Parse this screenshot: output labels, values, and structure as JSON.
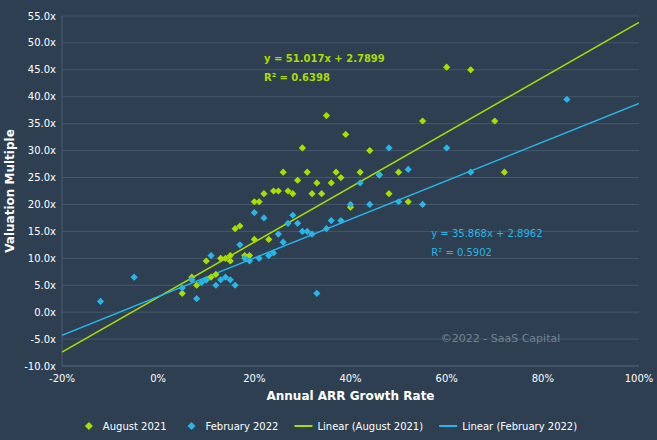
{
  "chart_data": {
    "type": "scatter",
    "background_color": "#2d3f50",
    "text_color": "#ffffff",
    "grid_color": "#4a5f72",
    "xlabel": "Annual ARR Growth Rate",
    "ylabel": "Valuation Multiple",
    "xlim": [
      -0.2,
      1.0
    ],
    "ylim": [
      -10,
      55
    ],
    "xticks": [
      {
        "value": -0.2,
        "label": "-20%"
      },
      {
        "value": 0.0,
        "label": "0%"
      },
      {
        "value": 0.2,
        "label": "20%"
      },
      {
        "value": 0.4,
        "label": "40%"
      },
      {
        "value": 0.6,
        "label": "60%"
      },
      {
        "value": 0.8,
        "label": "80%"
      },
      {
        "value": 1.0,
        "label": "100%"
      }
    ],
    "yticks": [
      {
        "value": -10,
        "label": "-10.0x"
      },
      {
        "value": -5,
        "label": "-5.0x"
      },
      {
        "value": 0,
        "label": "0.0x"
      },
      {
        "value": 5,
        "label": "5.0x"
      },
      {
        "value": 10,
        "label": "10.0x"
      },
      {
        "value": 15,
        "label": "15.0x"
      },
      {
        "value": 20,
        "label": "20.0x"
      },
      {
        "value": 25,
        "label": "25.0x"
      },
      {
        "value": 30,
        "label": "30.0x"
      },
      {
        "value": 35,
        "label": "35.0x"
      },
      {
        "value": 40,
        "label": "40.0x"
      },
      {
        "value": 45,
        "label": "45.0x"
      },
      {
        "value": 50,
        "label": "50.0x"
      },
      {
        "value": 55,
        "label": "55.0x"
      }
    ],
    "grid": true,
    "legend": "bottom",
    "series": [
      {
        "name": "August 2021",
        "type": "scatter",
        "marker": "diamond",
        "color": "#aadd00",
        "x": [
          0.05,
          0.07,
          0.08,
          0.1,
          0.1,
          0.11,
          0.12,
          0.13,
          0.14,
          0.15,
          0.15,
          0.16,
          0.17,
          0.18,
          0.19,
          0.2,
          0.2,
          0.21,
          0.22,
          0.23,
          0.24,
          0.25,
          0.26,
          0.27,
          0.28,
          0.29,
          0.3,
          0.31,
          0.32,
          0.33,
          0.34,
          0.35,
          0.36,
          0.37,
          0.38,
          0.39,
          0.4,
          0.42,
          0.44,
          0.46,
          0.48,
          0.5,
          0.52,
          0.55,
          0.6,
          0.65,
          0.7,
          0.72
        ],
        "values": [
          3.5,
          6.5,
          5.0,
          6.0,
          9.5,
          6.5,
          7.0,
          10.0,
          10.0,
          9.5,
          10.5,
          15.5,
          16.0,
          10.5,
          10.5,
          20.5,
          13.5,
          20.5,
          22.0,
          13.5,
          22.5,
          22.5,
          26.0,
          22.5,
          22.0,
          24.5,
          30.5,
          26.0,
          22.0,
          24.0,
          22.0,
          36.5,
          24.0,
          26.0,
          25.0,
          33.0,
          19.5,
          26.0,
          30.0,
          25.5,
          22.0,
          26.0,
          20.5,
          35.5,
          45.5,
          45.0,
          35.5,
          26.0
        ]
      },
      {
        "name": "February 2022",
        "type": "scatter",
        "marker": "diamond",
        "color": "#29b5e8",
        "x": [
          -0.12,
          -0.05,
          0.05,
          0.07,
          0.08,
          0.09,
          0.1,
          0.11,
          0.12,
          0.13,
          0.14,
          0.15,
          0.16,
          0.17,
          0.18,
          0.19,
          0.2,
          0.21,
          0.22,
          0.23,
          0.24,
          0.25,
          0.26,
          0.27,
          0.28,
          0.29,
          0.3,
          0.31,
          0.32,
          0.33,
          0.35,
          0.36,
          0.38,
          0.4,
          0.42,
          0.44,
          0.46,
          0.48,
          0.5,
          0.52,
          0.55,
          0.6,
          0.65,
          0.85
        ],
        "values": [
          2.0,
          6.5,
          4.5,
          6.0,
          2.5,
          5.5,
          6.0,
          10.5,
          5.0,
          6.0,
          6.5,
          6.0,
          5.0,
          12.5,
          10.0,
          9.5,
          18.5,
          10.0,
          17.5,
          10.5,
          11.0,
          14.5,
          13.0,
          16.5,
          18.0,
          16.5,
          15.0,
          15.0,
          14.5,
          3.5,
          15.5,
          17.0,
          17.0,
          20.0,
          24.0,
          20.0,
          25.5,
          30.5,
          20.5,
          26.5,
          20.0,
          30.5,
          26.0,
          39.5
        ]
      },
      {
        "name": "Linear (August 2021)",
        "type": "line",
        "color": "#aadd00",
        "x": [
          -0.2,
          1.0
        ],
        "values": [
          -7.4135,
          53.8069
        ]
      },
      {
        "name": "Linear (February 2022)",
        "type": "line",
        "color": "#29b5e8",
        "x": [
          -0.2,
          1.0
        ],
        "values": [
          -4.2774,
          38.7642
        ]
      }
    ],
    "annotations": [
      {
        "text": "y = 51.017x + 2.7899",
        "color": "#aadd00"
      },
      {
        "text": "R² = 0.6398",
        "color": "#aadd00"
      },
      {
        "text": "y = 35.868x + 2.8962",
        "color": "#29b5e8"
      },
      {
        "text": "R² = 0.5902",
        "color": "#29b5e8"
      },
      {
        "text": "©2022 - SaaS Capital",
        "color": "#8a9fb0"
      }
    ]
  }
}
